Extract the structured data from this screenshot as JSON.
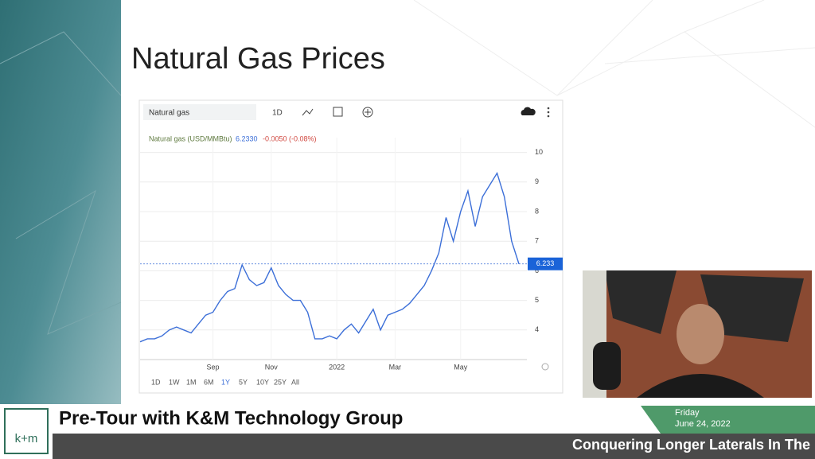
{
  "slide": {
    "title": "Natural Gas Prices"
  },
  "toolbar": {
    "search": "Natural gas",
    "interval": "1D"
  },
  "ranges": [
    "1D",
    "1W",
    "1M",
    "6M",
    "1Y",
    "5Y",
    "10Y",
    "25Y",
    "All"
  ],
  "chart_data": {
    "type": "line",
    "subtitle": "Natural gas (USD/MMBtu)",
    "quote_price": "6.2330",
    "quote_change": "-0.0050 (-0.08%)",
    "categories": [
      null,
      null,
      null,
      null,
      null,
      null,
      null,
      null,
      null,
      null,
      "Sep",
      null,
      null,
      null,
      null,
      null,
      null,
      null,
      "Nov",
      null,
      null,
      null,
      null,
      null,
      null,
      null,
      null,
      "2022",
      null,
      null,
      null,
      null,
      null,
      null,
      null,
      "Mar",
      null,
      null,
      null,
      null,
      null,
      null,
      null,
      null,
      "May",
      null,
      null,
      null,
      null,
      null,
      null,
      null,
      null
    ],
    "series": [
      {
        "name": "Natural gas",
        "color": "#3c6fd8",
        "values": [
          3.6,
          3.7,
          3.7,
          3.8,
          4.0,
          4.1,
          4.0,
          3.9,
          4.2,
          4.5,
          4.6,
          5.0,
          5.3,
          5.4,
          6.2,
          5.7,
          5.5,
          5.6,
          6.1,
          5.5,
          5.2,
          5.0,
          5.0,
          4.6,
          3.7,
          3.7,
          3.8,
          3.7,
          4.0,
          4.2,
          3.9,
          4.3,
          4.7,
          4.0,
          4.5,
          4.6,
          4.7,
          4.9,
          5.2,
          5.5,
          6.0,
          6.6,
          7.8,
          7.0,
          8.0,
          8.7,
          7.5,
          8.5,
          8.9,
          9.3,
          8.5,
          7.0,
          6.233
        ]
      }
    ],
    "current": {
      "value": 6.233,
      "label": "6.233"
    },
    "ylim": [
      3,
      10.5
    ],
    "yticks": [
      4,
      5,
      6,
      7,
      8,
      9,
      10
    ],
    "grid": true
  },
  "lower_third": {
    "logo": "k+m",
    "show": "Pre-Tour with K&M Technology Group",
    "day": "Friday",
    "date": "June 24, 2022",
    "ticker": "Conquering Longer Laterals In The"
  }
}
